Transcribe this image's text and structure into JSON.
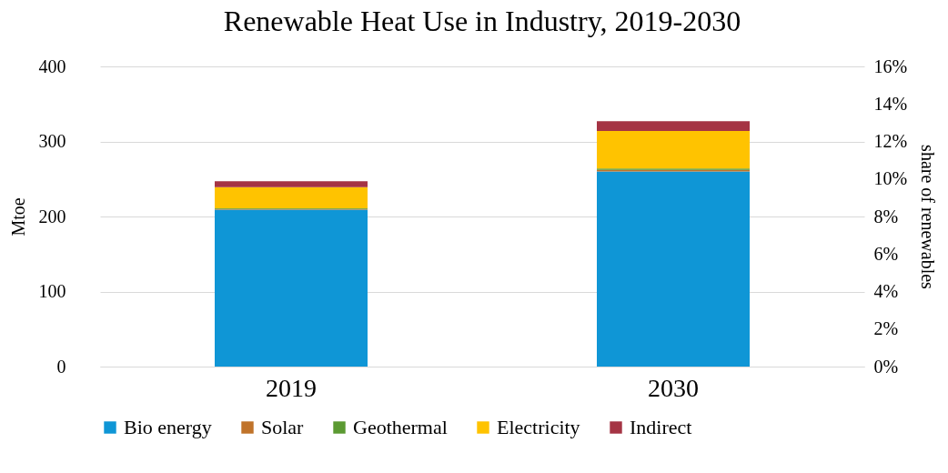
{
  "chart_data": {
    "type": "bar",
    "title": "Renewable Heat Use in Industry, 2019-2030",
    "categories": [
      "2019",
      "2030"
    ],
    "series": [
      {
        "name": "Bio energy",
        "color": "#0f96d6",
        "values": [
          209,
          260
        ]
      },
      {
        "name": "Solar",
        "color": "#c0732a",
        "values": [
          1,
          2
        ]
      },
      {
        "name": "Geothermal",
        "color": "#5b9a32",
        "values": [
          1,
          2
        ]
      },
      {
        "name": "Electricity",
        "color": "#ffc300",
        "values": [
          28,
          50
        ]
      },
      {
        "name": "Indirect",
        "color": "#a53444",
        "values": [
          8,
          13
        ]
      }
    ],
    "stacked": true,
    "ylabel": "Mtoe",
    "y2label": "share of renewables",
    "ylim": [
      0,
      400
    ],
    "yticks": [
      0,
      100,
      200,
      300,
      400
    ],
    "y2lim": [
      0,
      16
    ],
    "y2ticks": [
      {
        "value": 0,
        "label": "0%"
      },
      {
        "value": 2,
        "label": "2%"
      },
      {
        "value": 4,
        "label": "4%"
      },
      {
        "value": 6,
        "label": "6%"
      },
      {
        "value": 8,
        "label": "8%"
      },
      {
        "value": 10,
        "label": "10%"
      },
      {
        "value": 12,
        "label": "12%"
      },
      {
        "value": 14,
        "label": "14%"
      },
      {
        "value": 16,
        "label": "16%"
      }
    ],
    "grid": "y",
    "legend": "bottom"
  }
}
